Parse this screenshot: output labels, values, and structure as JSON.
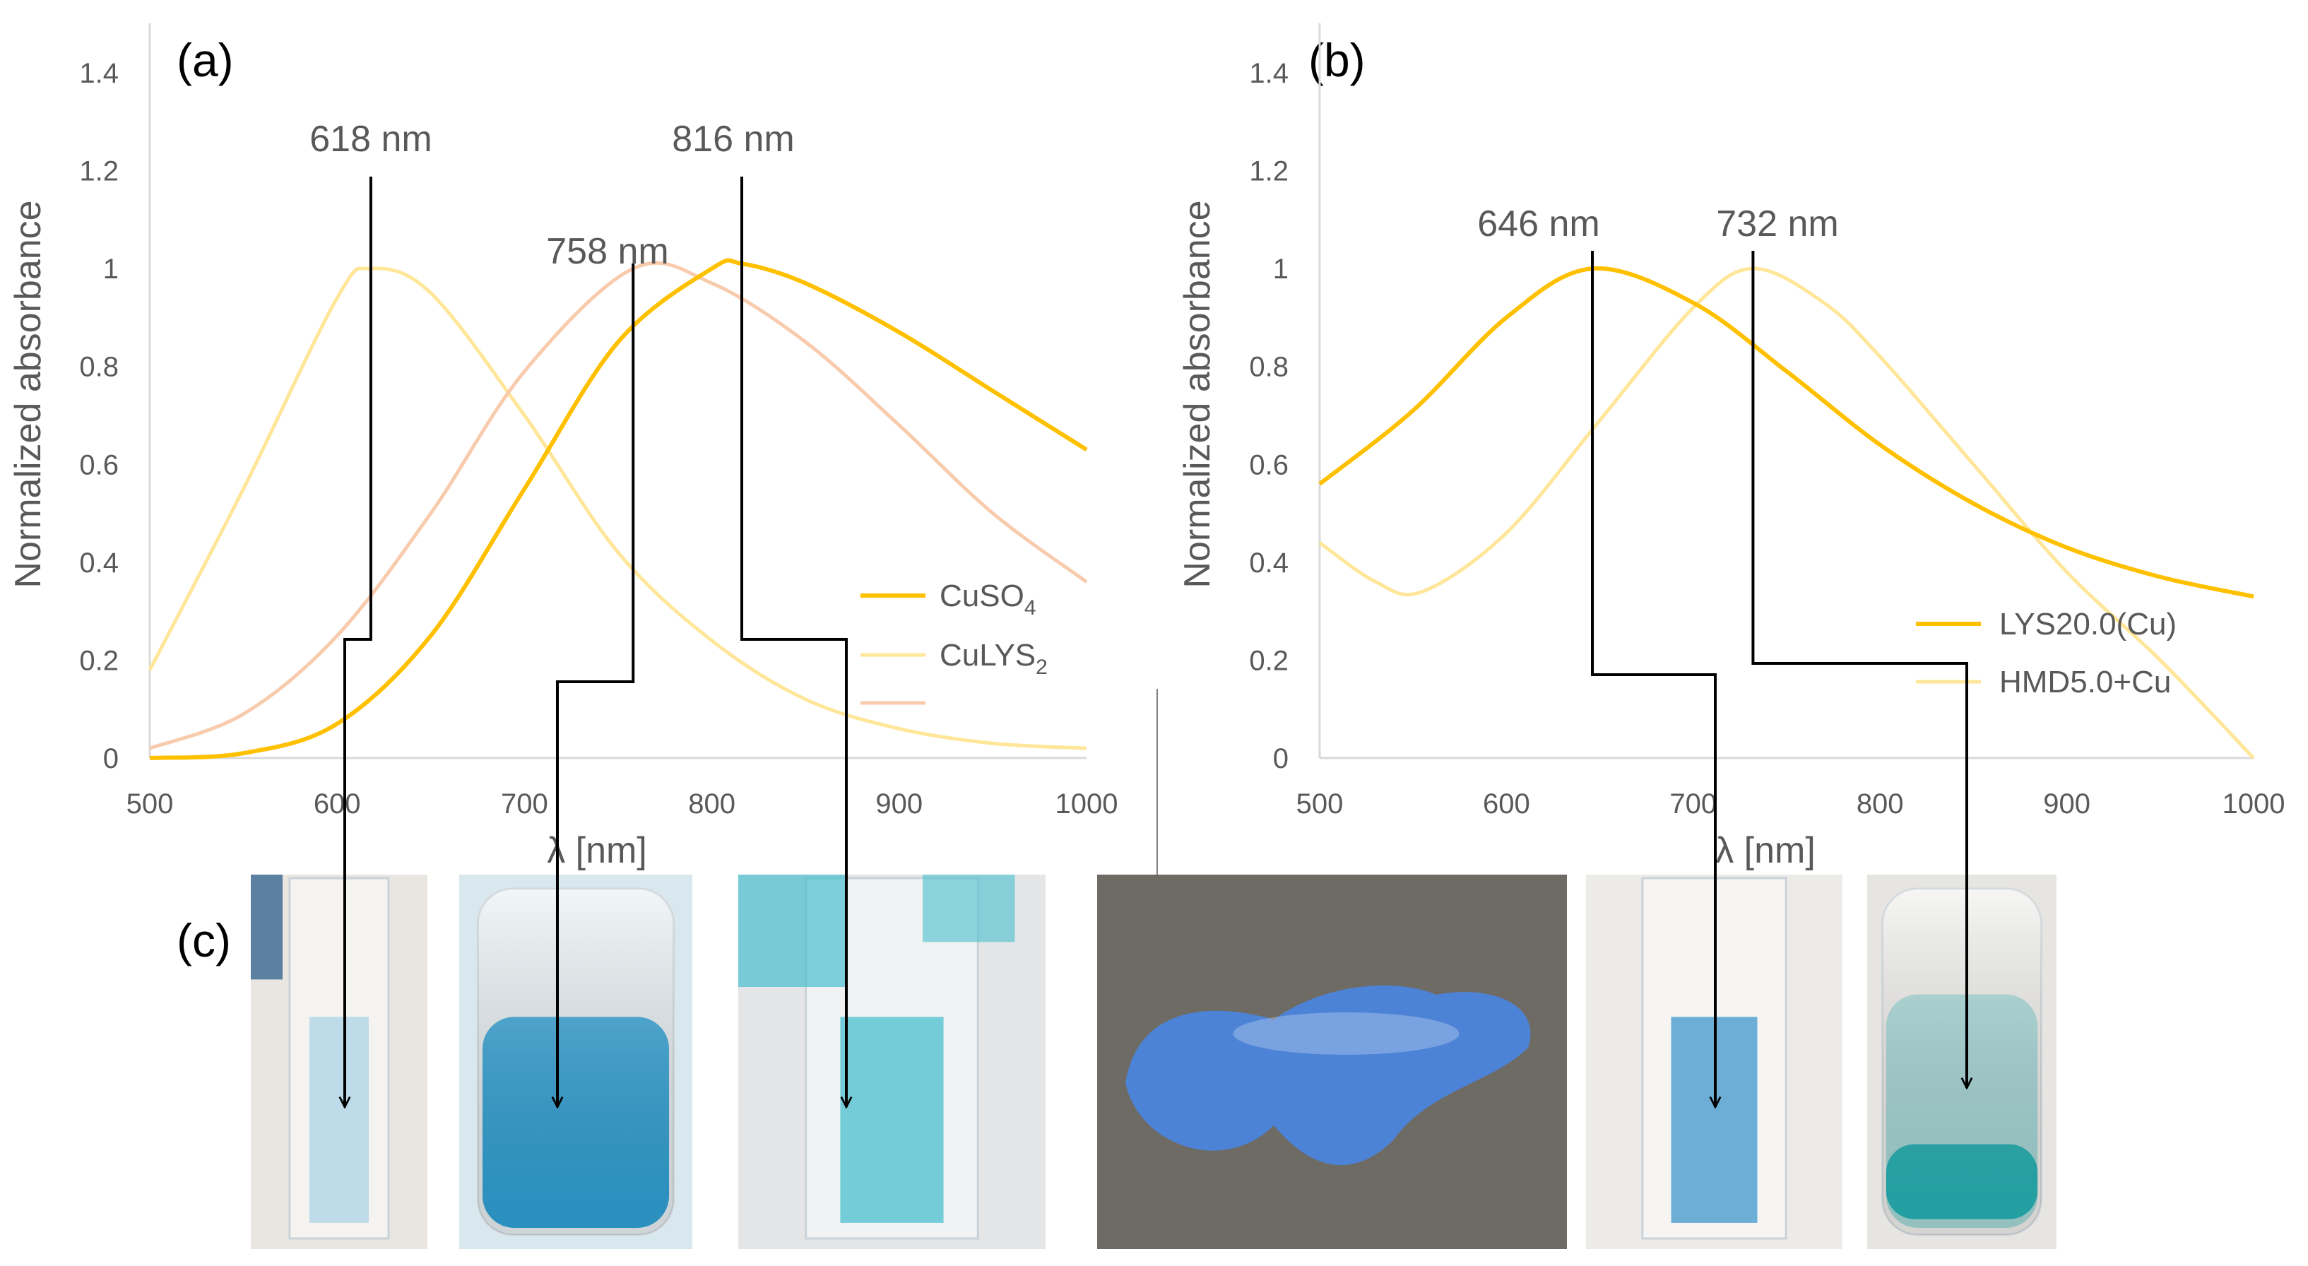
{
  "panels": {
    "a": "(a)",
    "b": "(b)",
    "c": "(c)"
  },
  "colors": {
    "series_strong": "#FFC000",
    "series_light": "#FFE699",
    "series_pink": "#F8CBAD",
    "axis": "#D9D9D9",
    "text": "#595959",
    "arrow": "#000000"
  },
  "chart_data": [
    {
      "id": "a",
      "type": "line",
      "xlabel": "λ [nm]",
      "ylabel": "Normalized absorbance",
      "xlim": [
        500,
        1000
      ],
      "ylim": [
        0,
        1.4
      ],
      "xticks": [
        "500",
        "600",
        "700",
        "800",
        "900",
        "1000"
      ],
      "yticks": [
        "0",
        "0.2",
        "0.4",
        "0.6",
        "0.8",
        "1",
        "1.2",
        "1.4"
      ],
      "grid": false,
      "legend": "bottom-right",
      "peak_labels": [
        "618 nm",
        "758 nm",
        "816 nm"
      ],
      "series": [
        {
          "name": "CuSO4",
          "legend_main": "CuSO",
          "legend_sub": "4",
          "style": "strong",
          "points": [
            [
              500,
              0.0
            ],
            [
              550,
              0.01
            ],
            [
              600,
              0.07
            ],
            [
              650,
              0.25
            ],
            [
              700,
              0.55
            ],
            [
              750,
              0.85
            ],
            [
              800,
              1.0
            ],
            [
              816,
              1.01
            ],
            [
              850,
              0.97
            ],
            [
              900,
              0.87
            ],
            [
              950,
              0.75
            ],
            [
              1000,
              0.63
            ]
          ]
        },
        {
          "name": "CuLYS2",
          "legend_main": "CuLYS",
          "legend_sub": "2",
          "style": "light",
          "points": [
            [
              500,
              0.18
            ],
            [
              550,
              0.55
            ],
            [
              600,
              0.94
            ],
            [
              618,
              1.0
            ],
            [
              650,
              0.95
            ],
            [
              700,
              0.7
            ],
            [
              750,
              0.42
            ],
            [
              800,
              0.24
            ],
            [
              850,
              0.12
            ],
            [
              900,
              0.06
            ],
            [
              950,
              0.03
            ],
            [
              1000,
              0.02
            ]
          ]
        },
        {
          "name": "",
          "style": "pink",
          "points": [
            [
              500,
              0.02
            ],
            [
              550,
              0.09
            ],
            [
              600,
              0.25
            ],
            [
              650,
              0.5
            ],
            [
              700,
              0.79
            ],
            [
              758,
              1.0
            ],
            [
              800,
              0.97
            ],
            [
              850,
              0.85
            ],
            [
              900,
              0.68
            ],
            [
              950,
              0.5
            ],
            [
              1000,
              0.36
            ]
          ]
        }
      ]
    },
    {
      "id": "b",
      "type": "line",
      "xlabel": "λ [nm]",
      "ylabel": "Normalized absorbance",
      "xlim": [
        500,
        1000
      ],
      "ylim": [
        0,
        1.4
      ],
      "xticks": [
        "500",
        "600",
        "700",
        "800",
        "900",
        "1000"
      ],
      "yticks": [
        "0",
        "0.2",
        "0.4",
        "0.6",
        "0.8",
        "1",
        "1.2",
        "1.4"
      ],
      "grid": false,
      "legend": "bottom-right",
      "peak_labels": [
        "646 nm",
        "732 nm"
      ],
      "series": [
        {
          "name": "LYS20.0(Cu)",
          "legend_main": "LYS20.0(Cu)",
          "style": "strong",
          "points": [
            [
              500,
              0.56
            ],
            [
              550,
              0.71
            ],
            [
              600,
              0.9
            ],
            [
              646,
              1.0
            ],
            [
              700,
              0.93
            ],
            [
              750,
              0.79
            ],
            [
              800,
              0.64
            ],
            [
              850,
              0.52
            ],
            [
              900,
              0.43
            ],
            [
              950,
              0.37
            ],
            [
              1000,
              0.33
            ]
          ]
        },
        {
          "name": "HMD5.0+Cu",
          "legend_main": "HMD5.0+Cu",
          "style": "light",
          "points": [
            [
              500,
              0.44
            ],
            [
              530,
              0.36
            ],
            [
              555,
              0.34
            ],
            [
              600,
              0.46
            ],
            [
              650,
              0.69
            ],
            [
              700,
              0.92
            ],
            [
              732,
              1.0
            ],
            [
              770,
              0.93
            ],
            [
              800,
              0.82
            ],
            [
              850,
              0.6
            ],
            [
              900,
              0.38
            ],
            [
              950,
              0.2
            ],
            [
              1000,
              0.0
            ]
          ]
        }
      ]
    }
  ],
  "photos": [
    {
      "name": "cuvette-culys2",
      "tint": "#7DBEE0",
      "bg": "#E9E6E1"
    },
    {
      "name": "vial-cuso4",
      "tint": "#1C9BD6",
      "bg": "#D9E8EE"
    },
    {
      "name": "cuvette-pink-series",
      "tint": "#49BFCF",
      "bg": "#E3E5E6"
    },
    {
      "name": "hydrogel-lys20",
      "tint": "#4A86E0",
      "bg": "#6E6A64"
    },
    {
      "name": "cuvette-lys20",
      "tint": "#3F96CC",
      "bg": "#EDEBE8"
    },
    {
      "name": "vial-hmd5",
      "tint": "#1FB3B6",
      "bg": "#E7E5E1"
    }
  ]
}
